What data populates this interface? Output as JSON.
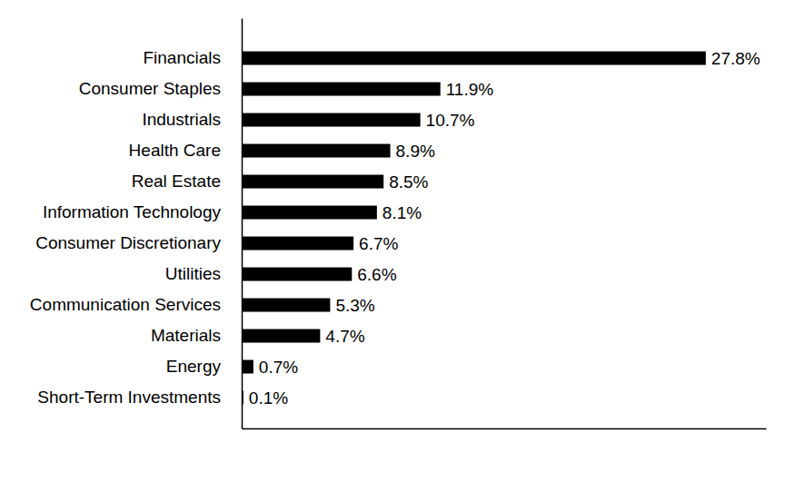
{
  "chart_data": {
    "type": "bar",
    "orientation": "horizontal",
    "categories": [
      "Financials",
      "Consumer Staples",
      "Industrials",
      "Health Care",
      "Real Estate",
      "Information Technology",
      "Consumer Discretionary",
      "Utilities",
      "Communication Services",
      "Materials",
      "Energy",
      "Short-Term Investments"
    ],
    "values": [
      27.8,
      11.9,
      10.7,
      8.9,
      8.5,
      8.1,
      6.7,
      6.6,
      5.3,
      4.7,
      0.7,
      0.1
    ],
    "value_labels": [
      "27.8%",
      "11.9%",
      "10.7%",
      "8.9%",
      "8.5%",
      "8.1%",
      "6.7%",
      "6.6%",
      "5.3%",
      "4.7%",
      "0.7%",
      "0.1%"
    ],
    "color": "#000000",
    "xlim": [
      0,
      31.4
    ],
    "data_labels": true,
    "tick_labels": "y",
    "grid": false
  }
}
